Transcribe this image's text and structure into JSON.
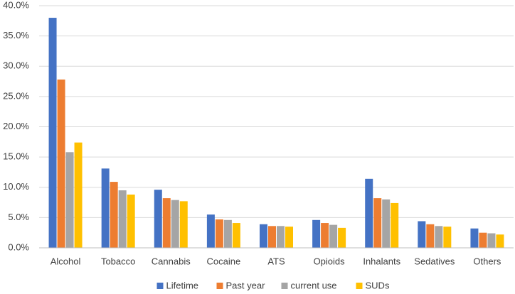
{
  "chart_data": {
    "type": "bar",
    "categories": [
      "Alcohol",
      "Tobacco",
      "Cannabis",
      "Cocaine",
      "ATS",
      "Opioids",
      "Inhalants",
      "Sedatives",
      "Others"
    ],
    "series": [
      {
        "name": "Lifetime",
        "color": "#4472c4",
        "values": [
          38.0,
          13.1,
          9.6,
          5.5,
          3.9,
          4.6,
          11.4,
          4.4,
          3.2
        ]
      },
      {
        "name": "Past year",
        "color": "#ed7d31",
        "values": [
          27.8,
          10.9,
          8.2,
          4.7,
          3.6,
          4.1,
          8.2,
          3.9,
          2.5
        ]
      },
      {
        "name": "current use",
        "color": "#a5a5a5",
        "values": [
          15.8,
          9.5,
          7.9,
          4.6,
          3.6,
          3.8,
          8.0,
          3.6,
          2.4
        ]
      },
      {
        "name": "SUDs",
        "color": "#ffc000",
        "values": [
          17.4,
          8.8,
          7.7,
          4.1,
          3.5,
          3.3,
          7.4,
          3.5,
          2.2
        ]
      }
    ],
    "ylim": [
      0,
      40
    ],
    "yticks": [
      {
        "value": 0,
        "label": "0.0%"
      },
      {
        "value": 5,
        "label": "5.0%"
      },
      {
        "value": 10,
        "label": "10.0%"
      },
      {
        "value": 15,
        "label": "15.0%"
      },
      {
        "value": 20,
        "label": "20.0%"
      },
      {
        "value": 25,
        "label": "25.0%"
      },
      {
        "value": 30,
        "label": "30.0%"
      },
      {
        "value": 35,
        "label": "35.0%"
      },
      {
        "value": 40,
        "label": "40.0%"
      }
    ],
    "grid": true,
    "legend": "bottom"
  }
}
